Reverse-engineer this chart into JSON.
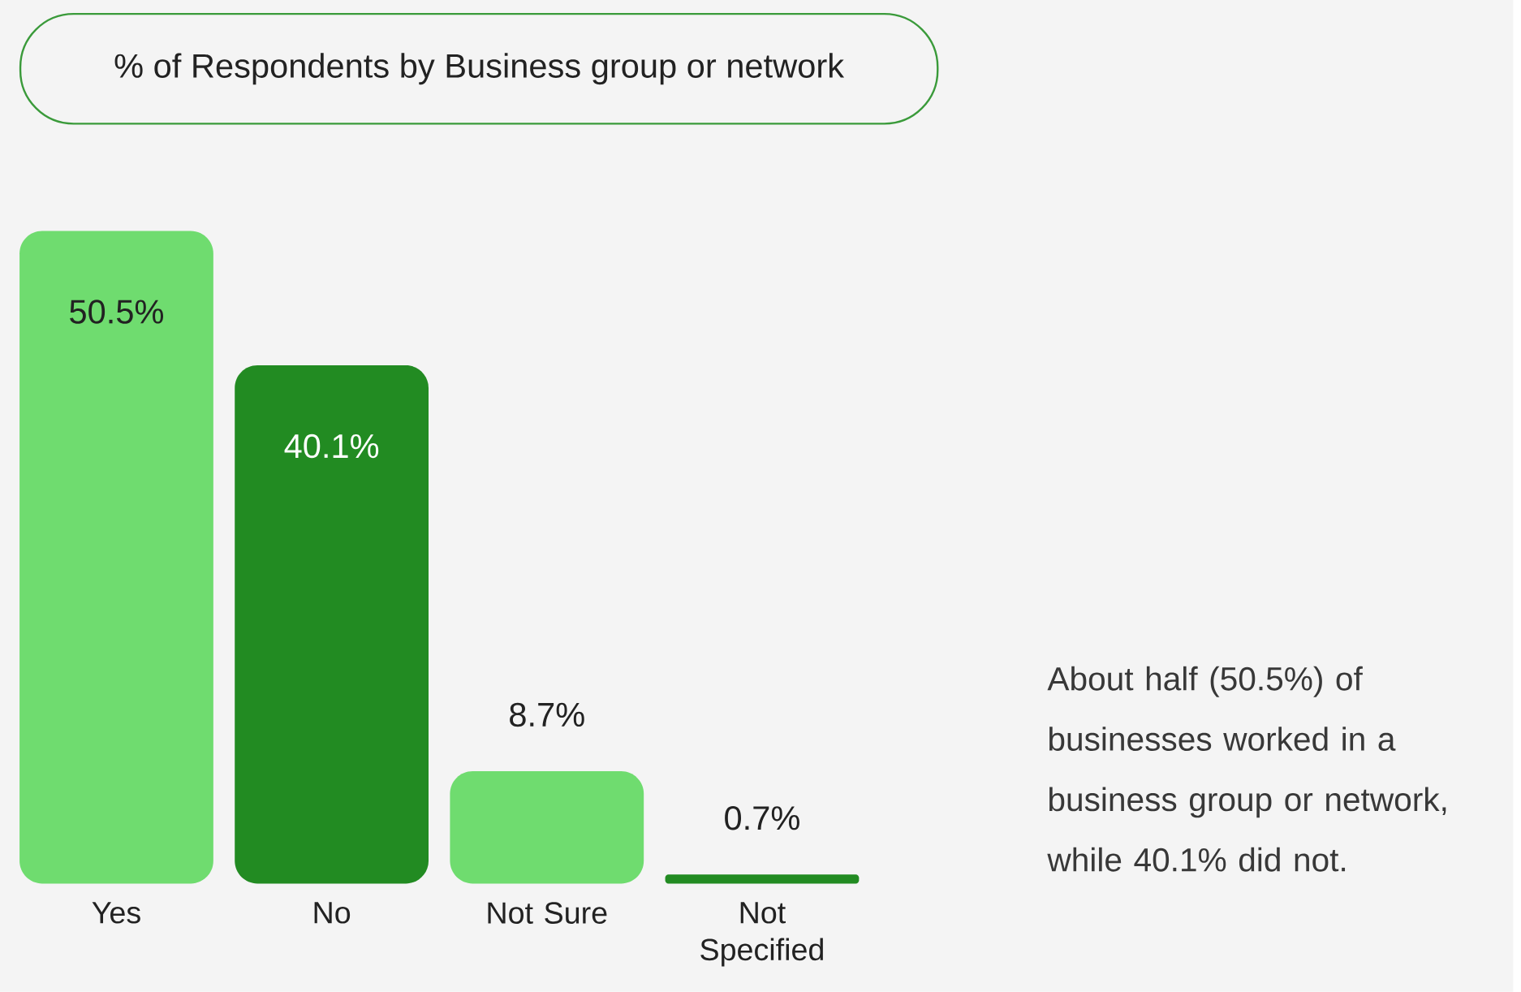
{
  "chart_data": {
    "type": "bar",
    "title": "% of Respondents by Business group or network",
    "categories": [
      "Yes",
      "No",
      "Not Sure",
      "Not Specified"
    ],
    "values": [
      50.5,
      40.1,
      8.7,
      0.7
    ],
    "colors": [
      "#6fdc6f",
      "#228b22",
      "#6fdc6f",
      "#228b22"
    ],
    "value_labels": [
      "50.5%",
      "40.1%",
      "8.7%",
      "0.7%"
    ],
    "annotations": [
      "About half (50.5%) of businesses worked in a business group or network, while 40.1% did not."
    ]
  }
}
